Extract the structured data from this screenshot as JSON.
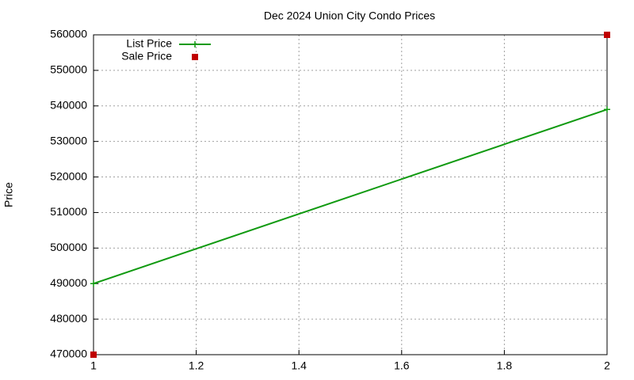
{
  "chart_data": {
    "type": "line",
    "title": "Dec 2024 Union City Condo Prices",
    "y_label": "Price",
    "x": [
      1,
      2
    ],
    "series": [
      {
        "name": "List Price",
        "color": "#109a10",
        "values": [
          490000,
          539000
        ],
        "line": true,
        "marker": "plus"
      },
      {
        "name": "Sale Price",
        "color": "#c00000",
        "values": [
          470000,
          560000
        ],
        "line": false,
        "marker": "square"
      }
    ],
    "xlim": [
      1,
      2
    ],
    "xticks": [
      1,
      1.2,
      1.4,
      1.6,
      1.8,
      2
    ],
    "ylim": [
      470000,
      560000
    ],
    "yticks": [
      470000,
      480000,
      490000,
      500000,
      510000,
      520000,
      530000,
      540000,
      550000,
      560000
    ],
    "grid": true,
    "legend": "top-left"
  }
}
